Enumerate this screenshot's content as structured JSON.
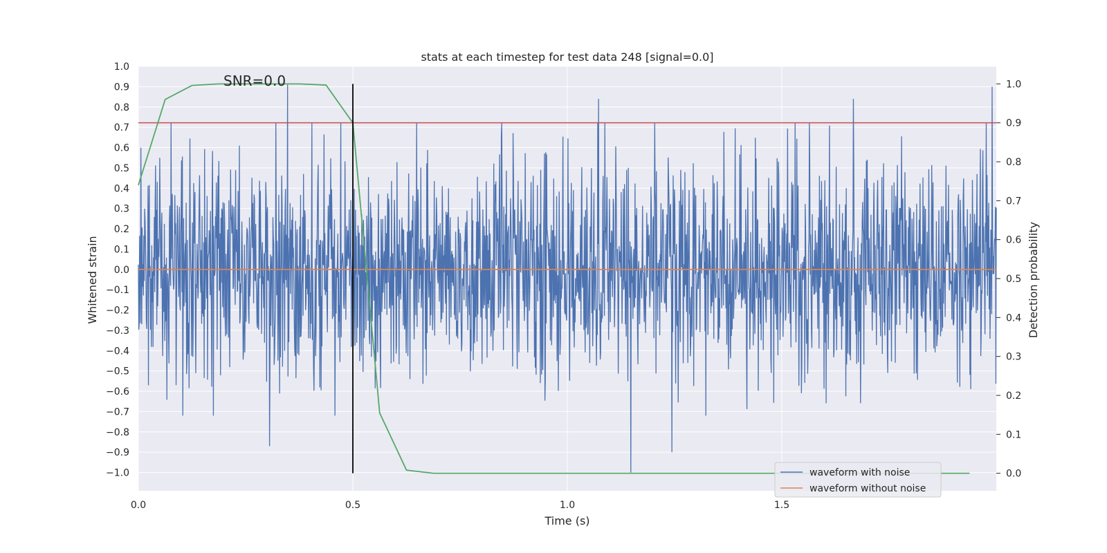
{
  "chart_data": {
    "type": "line",
    "title": "stats at each timestep for test data 248 [signal=0.0]",
    "annotation": "SNR=0.0",
    "xlabel": "Time (s)",
    "ylabel": "Whitened strain",
    "y2label": "Detection probability",
    "xlim": [
      0.0,
      2.0
    ],
    "ylim": [
      -1.09,
      1.0
    ],
    "y2lim": [
      -0.045,
      1.045
    ],
    "x_ticks": [
      0.0,
      0.5,
      1.0,
      1.5
    ],
    "x_tick_labels": [
      "0.0",
      "0.5",
      "1.0",
      "1.5"
    ],
    "y_ticks": [
      -1.0,
      -0.9,
      -0.8,
      -0.7,
      -0.6,
      -0.5,
      -0.4,
      -0.3,
      -0.2,
      -0.1,
      0.0,
      0.1,
      0.2,
      0.3,
      0.4,
      0.5,
      0.6,
      0.7,
      0.8,
      0.9,
      1.0
    ],
    "y_tick_labels": [
      "−1.0",
      "−0.9",
      "−0.8",
      "−0.7",
      "−0.6",
      "−0.5",
      "−0.4",
      "−0.3",
      "−0.2",
      "−0.1",
      "0.0",
      "0.1",
      "0.2",
      "0.3",
      "0.4",
      "0.5",
      "0.6",
      "0.7",
      "0.8",
      "0.9",
      "1.0"
    ],
    "y2_ticks": [
      0.0,
      0.1,
      0.2,
      0.3,
      0.4,
      0.5,
      0.6,
      0.7,
      0.8,
      0.9,
      1.0
    ],
    "y2_tick_labels": [
      "0.0",
      "0.1",
      "0.2",
      "0.3",
      "0.4",
      "0.5",
      "0.6",
      "0.7",
      "0.8",
      "0.9",
      "1.0"
    ],
    "grid": true,
    "legend_position": "bottom-right",
    "legend": [
      "waveform with noise",
      "waveform without noise"
    ],
    "colors": {
      "noisy": "#4c72b0",
      "clean": "#dd8452",
      "probability": "#55a868",
      "threshold": "#c44e52",
      "marker": "#000000",
      "background": "#eaeaf2"
    },
    "series": [
      {
        "name": "waveform with noise",
        "axis": "left",
        "description_sample": "noise samples",
        "x_start": 0.0,
        "x_end": 2.0,
        "sample_count": 2048,
        "peaks": [
          {
            "x": 0.348,
            "y": 0.91
          },
          {
            "x": 1.073,
            "y": 0.84
          },
          {
            "x": 1.148,
            "y": -1.0
          },
          {
            "x": 1.667,
            "y": 0.84
          },
          {
            "x": 1.99,
            "y": 0.9
          },
          {
            "x": 0.306,
            "y": -0.87
          },
          {
            "x": 1.244,
            "y": -0.9
          }
        ]
      },
      {
        "name": "waveform without noise",
        "axis": "left",
        "x": [
          0.0,
          2.0
        ],
        "y": [
          0.0,
          0.0
        ]
      },
      {
        "axis": "right",
        "x": [
          0.0,
          0.0625,
          0.125,
          0.1875,
          0.25,
          0.3125,
          0.375,
          0.4375,
          0.5,
          0.5625,
          0.625,
          0.6875,
          0.75,
          0.875,
          1.0,
          1.25,
          1.5,
          1.75,
          1.9375
        ],
        "y": [
          0.74,
          0.96,
          0.996,
          1.0,
          1.0,
          1.0,
          1.0,
          0.997,
          0.9,
          0.155,
          0.008,
          0.0,
          0.0,
          0.0,
          0.0,
          0.0,
          0.0,
          0.0,
          0.0
        ]
      }
    ],
    "threshold": {
      "axis": "right",
      "y": 0.9
    },
    "marker_line": {
      "x": 0.5,
      "y2_from": 0.0,
      "y2_to": 1.0
    }
  }
}
